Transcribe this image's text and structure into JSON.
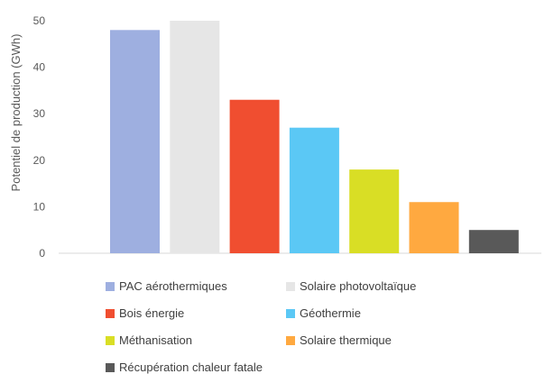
{
  "chart_data": {
    "type": "bar",
    "title": "",
    "xlabel": "",
    "ylabel": "Potentiel de production (GWh)",
    "ylim": [
      0,
      50
    ],
    "yticks": [
      "0",
      "10",
      "20",
      "30",
      "40",
      "50"
    ],
    "categories": [
      "PAC aérothermiques",
      "Solaire photovoltaïque",
      "Bois énergie",
      "Géothermie",
      "Méthanisation",
      "Solaire thermique",
      "Récupération chaleur fatale"
    ],
    "values": [
      48,
      50,
      33,
      27,
      18,
      11,
      5
    ],
    "colors": [
      "#9EAFE0",
      "#E6E6E6",
      "#F04E30",
      "#5BC8F5",
      "#D9DE25",
      "#FFA940",
      "#595959"
    ],
    "grid": false,
    "legend_position": "bottom"
  }
}
